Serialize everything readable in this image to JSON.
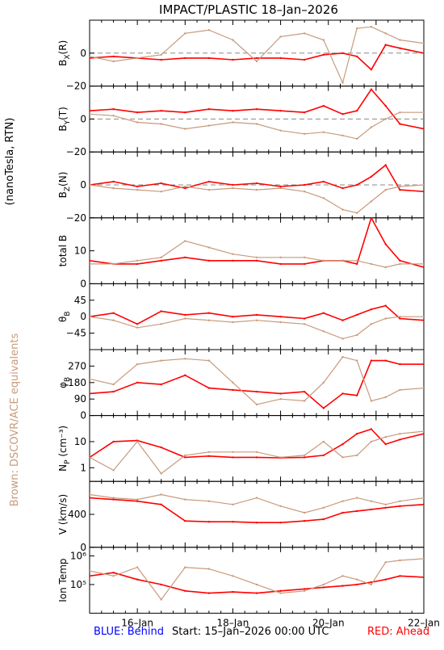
{
  "title": "IMPACT/PLASTIC   18–Jan–2026",
  "side_labels": {
    "units": "(nanoTesla, RTN)",
    "brown_note": "Brown: DSCOVR/ACE equivalents"
  },
  "footer": {
    "blue": "BLUE: Behind",
    "start": "Start: 15–Jan–2026 00:00 UTC",
    "red": "RED: Ahead"
  },
  "colors": {
    "ahead": "#ff0000",
    "dscovr_ace": "#c89a7c",
    "behind": "#0000ff",
    "brown_label": "#c89a7c",
    "axes": "#000000",
    "zero_line": "#888888"
  },
  "chart_data": {
    "type": "line",
    "x_axis": {
      "range_days": [
        0,
        7
      ],
      "tick_labels": [
        "16–Jan",
        "18–Jan",
        "20–Jan",
        "22–Jan"
      ],
      "tick_positions_days": [
        1,
        3,
        5,
        7
      ]
    },
    "panels": [
      {
        "id": "bx",
        "ylabel": "B",
        "ysub": "X",
        "ysuffix": "(R)",
        "scale": "linear",
        "ylim": [
          -20,
          20
        ],
        "ticks": [
          {
            "v": 0,
            "t": "0"
          },
          {
            "v": -20,
            "t": "−20"
          }
        ],
        "zero_line": true,
        "series": [
          {
            "name": "Ahead",
            "x": [
              0.0,
              0.5,
              1.0,
              1.5,
              2.0,
              2.5,
              3.0,
              3.5,
              4.0,
              4.5,
              4.9,
              5.3,
              5.6,
              5.9,
              6.2,
              6.5,
              7.0
            ],
            "y": [
              -3,
              -2,
              -3,
              -4,
              -3,
              -3,
              -4,
              -3,
              -3,
              -4,
              -1,
              0,
              -2,
              -10,
              5,
              3,
              0
            ]
          },
          {
            "name": "DSCOVR/ACE",
            "x": [
              0.0,
              0.5,
              1.0,
              1.5,
              2.0,
              2.5,
              3.0,
              3.5,
              4.0,
              4.5,
              4.9,
              5.3,
              5.6,
              5.9,
              6.2,
              6.5,
              7.0
            ],
            "y": [
              -2,
              -5,
              -3,
              -1,
              12,
              14,
              8,
              -5,
              10,
              12,
              8,
              -18,
              15,
              16,
              12,
              8,
              6
            ]
          }
        ]
      },
      {
        "id": "by",
        "ylabel": "B",
        "ysub": "Y",
        "ysuffix": "(T)",
        "scale": "linear",
        "ylim": [
          -20,
          20
        ],
        "ticks": [
          {
            "v": 0,
            "t": "0"
          },
          {
            "v": -20,
            "t": "−20"
          }
        ],
        "zero_line": true,
        "series": [
          {
            "name": "Ahead",
            "x": [
              0.0,
              0.5,
              1.0,
              1.5,
              2.0,
              2.5,
              3.0,
              3.5,
              4.0,
              4.5,
              4.9,
              5.3,
              5.6,
              5.9,
              6.2,
              6.5,
              7.0
            ],
            "y": [
              5,
              6,
              4,
              5,
              4,
              6,
              5,
              6,
              5,
              4,
              8,
              3,
              5,
              18,
              8,
              -3,
              -6
            ]
          },
          {
            "name": "DSCOVR/ACE",
            "x": [
              0.0,
              0.5,
              1.0,
              1.5,
              2.0,
              2.5,
              3.0,
              3.5,
              4.0,
              4.5,
              4.9,
              5.3,
              5.6,
              5.9,
              6.2,
              6.5,
              7.0
            ],
            "y": [
              3,
              2,
              -2,
              -3,
              -6,
              -4,
              -2,
              -3,
              -7,
              -9,
              -8,
              -10,
              -12,
              -5,
              0,
              4,
              4
            ]
          }
        ]
      },
      {
        "id": "bz",
        "ylabel": "B",
        "ysub": "Z",
        "ysuffix": "(N)",
        "scale": "linear",
        "ylim": [
          -20,
          20
        ],
        "ticks": [
          {
            "v": 0,
            "t": "0"
          },
          {
            "v": -20,
            "t": "−20"
          }
        ],
        "zero_line": true,
        "series": [
          {
            "name": "Ahead",
            "x": [
              0.0,
              0.5,
              1.0,
              1.5,
              2.0,
              2.5,
              3.0,
              3.5,
              4.0,
              4.5,
              4.9,
              5.3,
              5.6,
              5.9,
              6.2,
              6.5,
              7.0
            ],
            "y": [
              0,
              2,
              -1,
              1,
              -2,
              2,
              0,
              1,
              -1,
              0,
              2,
              -2,
              0,
              5,
              12,
              -3,
              -4
            ]
          },
          {
            "name": "DSCOVR/ACE",
            "x": [
              0.0,
              0.5,
              1.0,
              1.5,
              2.0,
              2.5,
              3.0,
              3.5,
              4.0,
              4.5,
              4.9,
              5.3,
              5.6,
              5.9,
              6.2,
              6.5,
              7.0
            ],
            "y": [
              0,
              -2,
              -3,
              -4,
              -1,
              -3,
              -2,
              -3,
              -2,
              -4,
              -8,
              -15,
              -17,
              -10,
              -3,
              -1,
              0
            ]
          }
        ]
      },
      {
        "id": "btot",
        "ylabel": "total B",
        "ysub": "",
        "ysuffix": "",
        "scale": "linear",
        "ylim": [
          0,
          20
        ],
        "ticks": [
          {
            "v": 10,
            "t": "10"
          },
          {
            "v": 0,
            "t": "0"
          }
        ],
        "zero_line": false,
        "series": [
          {
            "name": "Ahead",
            "x": [
              0.0,
              0.5,
              1.0,
              1.5,
              2.0,
              2.5,
              3.0,
              3.5,
              4.0,
              4.5,
              4.9,
              5.3,
              5.6,
              5.9,
              6.2,
              6.5,
              7.0
            ],
            "y": [
              7,
              6,
              6,
              7,
              8,
              7,
              7,
              7,
              6,
              6,
              7,
              7,
              6,
              20,
              12,
              7,
              5
            ]
          },
          {
            "name": "DSCOVR/ACE",
            "x": [
              0.0,
              0.5,
              1.0,
              1.5,
              2.0,
              2.5,
              3.0,
              3.5,
              4.0,
              4.5,
              4.9,
              5.3,
              5.6,
              5.9,
              6.2,
              6.5,
              7.0
            ],
            "y": [
              6,
              6,
              7,
              8,
              13,
              11,
              9,
              8,
              8,
              8,
              7,
              7,
              7,
              6,
              5,
              6,
              6
            ]
          }
        ]
      },
      {
        "id": "theta",
        "ylabel": "θ",
        "ysub": "B",
        "ysuffix": "",
        "scale": "linear",
        "ylim": [
          -90,
          90
        ],
        "ticks": [
          {
            "v": 45,
            "t": "45"
          },
          {
            "v": 0,
            "t": "0"
          },
          {
            "v": -45,
            "t": "−45"
          }
        ],
        "zero_line": false,
        "series": [
          {
            "name": "Ahead",
            "x": [
              0.0,
              0.5,
              1.0,
              1.5,
              2.0,
              2.5,
              3.0,
              3.5,
              4.0,
              4.5,
              4.9,
              5.3,
              5.6,
              5.9,
              6.2,
              6.5,
              7.0
            ],
            "y": [
              0,
              10,
              -20,
              15,
              5,
              10,
              0,
              5,
              0,
              -5,
              10,
              -10,
              5,
              20,
              30,
              -5,
              -10
            ]
          },
          {
            "name": "DSCOVR/ACE",
            "x": [
              0.0,
              0.5,
              1.0,
              1.5,
              2.0,
              2.5,
              3.0,
              3.5,
              4.0,
              4.5,
              4.9,
              5.3,
              5.6,
              5.9,
              6.2,
              6.5,
              7.0
            ],
            "y": [
              0,
              -10,
              -30,
              -20,
              -5,
              -10,
              -15,
              -10,
              -15,
              -20,
              -40,
              -60,
              -50,
              -20,
              -5,
              0,
              0
            ]
          }
        ]
      },
      {
        "id": "phi",
        "ylabel": "φ",
        "ysub": "B",
        "ysuffix": "",
        "scale": "linear",
        "ylim": [
          0,
          360
        ],
        "ticks": [
          {
            "v": 270,
            "t": "270"
          },
          {
            "v": 180,
            "t": "180"
          },
          {
            "v": 90,
            "t": "90"
          },
          {
            "v": 0,
            "t": "0"
          }
        ],
        "zero_line": false,
        "series": [
          {
            "name": "Ahead",
            "x": [
              0.0,
              0.5,
              1.0,
              1.5,
              2.0,
              2.5,
              3.0,
              3.5,
              4.0,
              4.5,
              4.9,
              5.3,
              5.6,
              5.9,
              6.2,
              6.5,
              7.0
            ],
            "y": [
              120,
              130,
              180,
              170,
              220,
              150,
              140,
              130,
              120,
              130,
              40,
              120,
              110,
              300,
              300,
              280,
              280
            ]
          },
          {
            "name": "DSCOVR/ACE",
            "x": [
              0.0,
              0.5,
              1.0,
              1.5,
              2.0,
              2.5,
              3.0,
              3.5,
              4.0,
              4.5,
              4.9,
              5.3,
              5.6,
              5.9,
              6.2,
              6.5,
              7.0
            ],
            "y": [
              200,
              170,
              280,
              300,
              310,
              300,
              180,
              60,
              90,
              80,
              180,
              320,
              300,
              80,
              100,
              140,
              150
            ]
          }
        ]
      },
      {
        "id": "np",
        "ylabel": "N",
        "ysub": "P",
        "ysuffix": " (cm⁻³)",
        "scale": "log",
        "ylim": [
          0.3,
          100
        ],
        "ticks": [
          {
            "v": 10,
            "t": "10"
          },
          {
            "v": 1,
            "t": "1"
          }
        ],
        "zero_line": false,
        "series": [
          {
            "name": "Ahead",
            "x": [
              0.0,
              0.5,
              1.0,
              1.5,
              2.0,
              2.5,
              3.0,
              3.5,
              4.0,
              4.5,
              4.9,
              5.3,
              5.6,
              5.9,
              6.2,
              6.5,
              7.0
            ],
            "y": [
              2.5,
              10,
              11,
              6,
              2.5,
              2.8,
              2.5,
              2.5,
              2.4,
              2.5,
              3,
              8,
              20,
              30,
              8,
              12,
              20
            ]
          },
          {
            "name": "DSCOVR/ACE",
            "x": [
              0.0,
              0.5,
              1.0,
              1.5,
              2.0,
              2.5,
              3.0,
              3.5,
              4.0,
              4.5,
              4.9,
              5.3,
              5.6,
              5.9,
              6.2,
              6.5,
              7.0
            ],
            "y": [
              2.5,
              0.8,
              10,
              0.6,
              3,
              4,
              4,
              4,
              2.5,
              3,
              10,
              2.5,
              3,
              10,
              15,
              20,
              25
            ]
          }
        ]
      },
      {
        "id": "v",
        "ylabel": "V (km/s)",
        "ysub": "",
        "ysuffix": "",
        "scale": "linear",
        "ylim": [
          0,
          800
        ],
        "ticks": [
          {
            "v": 400,
            "t": "400"
          },
          {
            "v": 0,
            "t": "0"
          }
        ],
        "zero_line": false,
        "series": [
          {
            "name": "Ahead",
            "x": [
              0.0,
              0.5,
              1.0,
              1.5,
              2.0,
              2.5,
              3.0,
              3.5,
              4.0,
              4.5,
              4.9,
              5.3,
              5.6,
              5.9,
              6.2,
              6.5,
              7.0
            ],
            "y": [
              600,
              580,
              560,
              520,
              320,
              310,
              310,
              300,
              300,
              320,
              340,
              420,
              440,
              460,
              480,
              500,
              520
            ]
          },
          {
            "name": "DSCOVR/ACE",
            "x": [
              0.0,
              0.5,
              1.0,
              1.5,
              2.0,
              2.5,
              3.0,
              3.5,
              4.0,
              4.5,
              4.9,
              5.3,
              5.6,
              5.9,
              6.2,
              6.5,
              7.0
            ],
            "y": [
              640,
              600,
              580,
              640,
              580,
              560,
              520,
              600,
              500,
              420,
              480,
              560,
              600,
              560,
              520,
              560,
              600
            ]
          }
        ]
      },
      {
        "id": "temp",
        "ylabel": "Ion Temp",
        "ysub": "",
        "ysuffix": "",
        "scale": "log",
        "ylim": [
          10000,
          2000000
        ],
        "ticks": [
          {
            "v": 1000000,
            "t": "10⁶"
          },
          {
            "v": 100000,
            "t": "10⁵"
          }
        ],
        "zero_line": false,
        "series": [
          {
            "name": "Ahead",
            "x": [
              0.0,
              0.5,
              1.0,
              1.5,
              2.0,
              2.5,
              3.0,
              3.5,
              4.0,
              4.5,
              4.9,
              5.3,
              5.6,
              5.9,
              6.2,
              6.5,
              7.0
            ],
            "y": [
              200000,
              260000,
              150000,
              100000,
              60000,
              50000,
              55000,
              50000,
              60000,
              70000,
              80000,
              90000,
              100000,
              120000,
              150000,
              200000,
              180000
            ]
          },
          {
            "name": "DSCOVR/ACE",
            "x": [
              0.0,
              0.5,
              1.0,
              1.5,
              2.0,
              2.5,
              3.0,
              3.5,
              4.0,
              4.5,
              4.9,
              5.3,
              5.6,
              5.9,
              6.2,
              6.5,
              7.0
            ],
            "y": [
              300000,
              200000,
              400000,
              30000,
              400000,
              350000,
              200000,
              100000,
              50000,
              60000,
              100000,
              200000,
              150000,
              100000,
              600000,
              700000,
              800000
            ]
          }
        ]
      }
    ]
  }
}
